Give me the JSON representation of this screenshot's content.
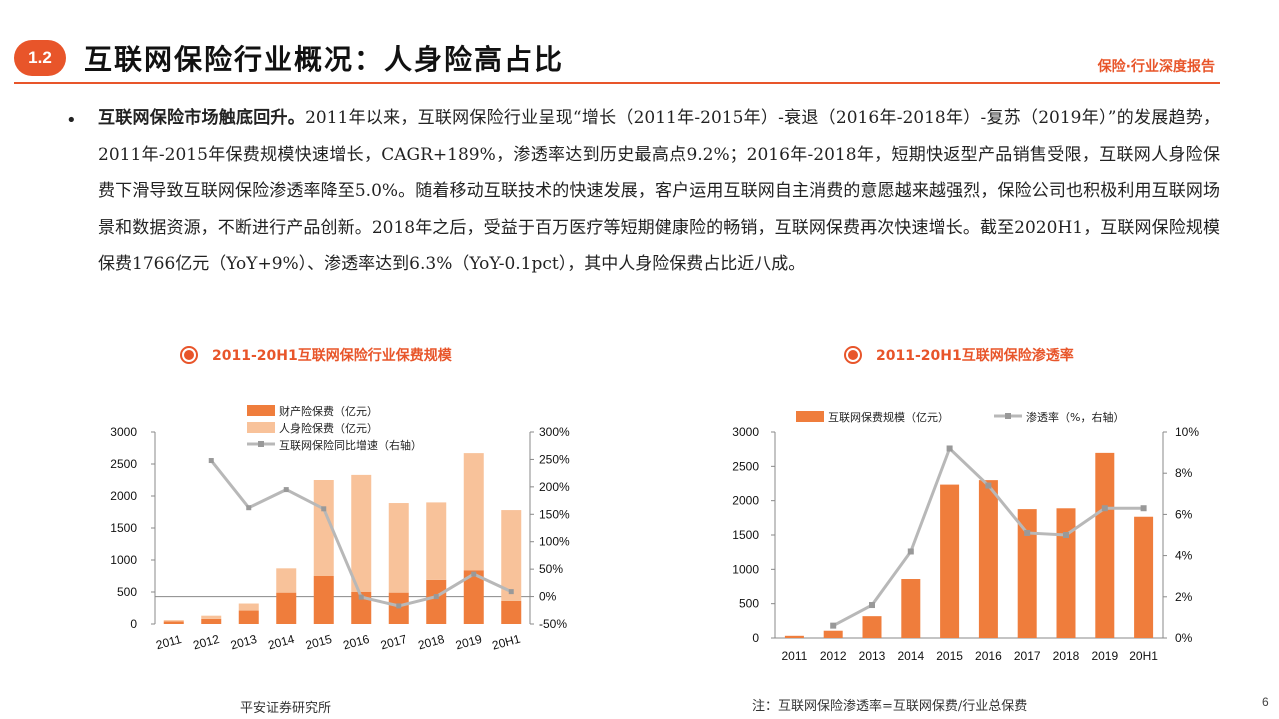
{
  "header": {
    "section_number": "1.2",
    "title": "互联网保险行业概况：人身险高占比",
    "report_tag": "保险·行业深度报告"
  },
  "body": {
    "bullet_lead": "互联网保险市场触底回升。",
    "bullet_text": "2011年以来，互联网保险行业呈现“增长（2011年-2015年）-衰退（2016年-2018年）-复苏（2019年）”的发展趋势，2011年-2015年保费规模快速增长，CAGR+189%，渗透率达到历史最高点9.2%；2016年-2018年，短期快返型产品销售受限，互联网人身险保费下滑导致互联网保险渗透率降至5.0%。随着移动互联技术的快速发展，客户运用互联网自主消费的意愿越来越强烈，保险公司也积极利用互联网场景和数据资源，不断进行产品创新。2018年之后，受益于百万医疗等短期健康险的畅销，互联网保费再次快速增长。截至2020H1，互联网保险规模保费1766亿元（YoY+9%）、渗透率达到6.3%（YoY-0.1pct），其中人身险保费占比近八成。"
  },
  "chart_data": [
    {
      "type": "bar",
      "title": "2011-20H1互联网保险行业保费规模",
      "categories": [
        "2011",
        "2012",
        "2013",
        "2014",
        "2015",
        "2016",
        "2017",
        "2018",
        "2019",
        "20H1"
      ],
      "series": [
        {
          "name": "财产险保费（亿元）",
          "kind": "stacked-bar",
          "axis": "left",
          "values": [
            40,
            80,
            210,
            490,
            750,
            500,
            490,
            690,
            840,
            360
          ]
        },
        {
          "name": "人身险保费（亿元）",
          "kind": "stacked-bar",
          "axis": "left",
          "values": [
            20,
            50,
            110,
            380,
            1500,
            1830,
            1400,
            1210,
            1830,
            1420
          ]
        },
        {
          "name": "互联网保险同比增速（右轴）",
          "kind": "line",
          "axis": "right",
          "values": [
            null,
            248,
            162,
            195,
            160,
            -1,
            -17,
            0,
            41,
            9
          ]
        }
      ],
      "yleft": {
        "ticks": [
          "0",
          "500",
          "1000",
          "1500",
          "2000",
          "2500",
          "3000"
        ],
        "min": 0,
        "max": 3000
      },
      "yright": {
        "ticks": [
          "-50%",
          "0%",
          "50%",
          "100%",
          "150%",
          "200%",
          "250%",
          "300%"
        ],
        "min": -50,
        "max": 300
      },
      "legend_position": "top",
      "colors": {
        "property": "#ef7d3c",
        "life": "#f8c29a",
        "growth": "#b8b8b8"
      }
    },
    {
      "type": "bar",
      "title": "2011-20H1互联网保险渗透率",
      "categories": [
        "2011",
        "2012",
        "2013",
        "2014",
        "2015",
        "2016",
        "2017",
        "2018",
        "2019",
        "20H1"
      ],
      "series": [
        {
          "name": "互联网保费规模（亿元）",
          "kind": "bar",
          "axis": "left",
          "values": [
            32,
            106,
            318,
            859,
            2234,
            2299,
            1877,
            1889,
            2696,
            1766
          ]
        },
        {
          "name": "渗透率（%，右轴）",
          "kind": "line",
          "axis": "right",
          "values": [
            null,
            0.6,
            1.6,
            4.2,
            9.2,
            7.4,
            5.1,
            5.0,
            6.3,
            6.3
          ]
        }
      ],
      "yleft": {
        "ticks": [
          "0",
          "500",
          "1000",
          "1500",
          "2000",
          "2500",
          "3000"
        ],
        "min": 0,
        "max": 3000
      },
      "yright": {
        "ticks": [
          "0%",
          "2%",
          "4%",
          "6%",
          "8%",
          "10%"
        ],
        "min": 0,
        "max": 10
      },
      "legend_position": "top",
      "colors": {
        "bar": "#ef7d3c",
        "line": "#b8b8b8"
      }
    }
  ],
  "footer": {
    "source": "平安证券研究所",
    "note": "注：互联网保险渗透率=互联网保费/行业总保费",
    "page": "6"
  }
}
